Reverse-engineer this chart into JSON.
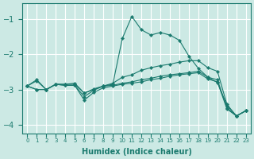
{
  "xlabel": "Humidex (Indice chaleur)",
  "x_values": [
    0,
    1,
    2,
    3,
    4,
    5,
    6,
    7,
    8,
    9,
    10,
    11,
    12,
    13,
    14,
    15,
    16,
    17,
    18,
    19,
    20,
    21,
    22,
    23
  ],
  "line_peak": [
    -2.9,
    -2.75,
    -3.0,
    -2.85,
    -2.85,
    -2.85,
    -3.1,
    -3.0,
    -2.9,
    -2.85,
    -1.55,
    -0.92,
    -1.3,
    -1.45,
    -1.38,
    -1.45,
    -1.6,
    -2.05,
    -2.4,
    -2.65,
    -2.8,
    -3.45,
    -3.75,
    -3.6
  ],
  "line_rise": [
    -2.9,
    -2.72,
    -3.0,
    -2.85,
    -2.85,
    -2.82,
    -3.1,
    -2.98,
    -2.9,
    -2.82,
    -2.65,
    -2.58,
    -2.45,
    -2.38,
    -2.32,
    -2.28,
    -2.22,
    -2.18,
    -2.18,
    -2.38,
    -2.48,
    -3.42,
    -3.75,
    -3.6
  ],
  "line_flat1": [
    -2.9,
    -3.0,
    -3.0,
    -2.85,
    -2.88,
    -2.88,
    -3.2,
    -3.02,
    -2.9,
    -2.88,
    -2.82,
    -2.78,
    -2.72,
    -2.68,
    -2.62,
    -2.58,
    -2.55,
    -2.52,
    -2.48,
    -2.65,
    -2.72,
    -3.52,
    -3.75,
    -3.6
  ],
  "line_flat2": [
    -2.9,
    -3.0,
    -3.0,
    -2.85,
    -2.88,
    -2.88,
    -3.3,
    -3.08,
    -2.95,
    -2.9,
    -2.85,
    -2.82,
    -2.78,
    -2.72,
    -2.68,
    -2.62,
    -2.58,
    -2.55,
    -2.52,
    -2.7,
    -2.78,
    -3.55,
    -3.75,
    -3.6
  ],
  "line_color": "#1a7a6e",
  "bg_color": "#cce9e4",
  "grid_color": "#ffffff",
  "ylim": [
    -4.25,
    -0.55
  ],
  "xlim": [
    -0.5,
    23.5
  ],
  "yticks": [
    -4,
    -3,
    -2,
    -1
  ],
  "xtick_labels": [
    "0",
    "1",
    "2",
    "3",
    "4",
    "5",
    "6",
    "7",
    "8",
    "9",
    "10",
    "11",
    "12",
    "13",
    "14",
    "15",
    "16",
    "17",
    "18",
    "19",
    "20",
    "21",
    "22",
    "23"
  ]
}
